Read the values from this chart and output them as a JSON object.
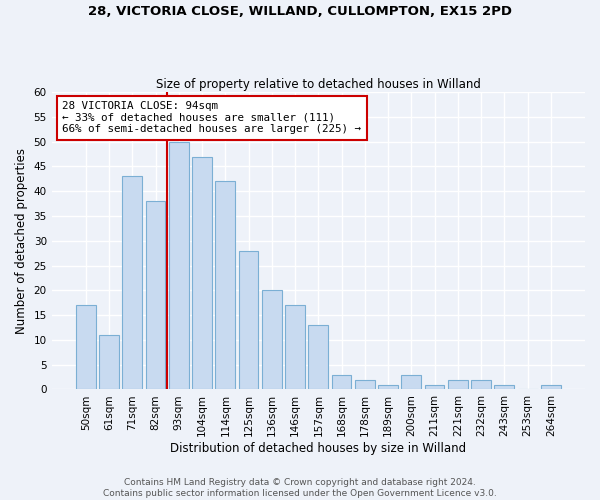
{
  "title1": "28, VICTORIA CLOSE, WILLAND, CULLOMPTON, EX15 2PD",
  "title2": "Size of property relative to detached houses in Willand",
  "xlabel": "Distribution of detached houses by size in Willand",
  "ylabel": "Number of detached properties",
  "bar_color": "#c8daf0",
  "bar_edge_color": "#7bafd4",
  "categories": [
    "50sqm",
    "61sqm",
    "71sqm",
    "82sqm",
    "93sqm",
    "104sqm",
    "114sqm",
    "125sqm",
    "136sqm",
    "146sqm",
    "157sqm",
    "168sqm",
    "178sqm",
    "189sqm",
    "200sqm",
    "211sqm",
    "221sqm",
    "232sqm",
    "243sqm",
    "253sqm",
    "264sqm"
  ],
  "values": [
    17,
    11,
    43,
    38,
    50,
    47,
    42,
    28,
    20,
    17,
    13,
    3,
    2,
    1,
    3,
    1,
    2,
    2,
    1,
    0,
    1
  ],
  "vline_x_index": 4,
  "vline_color": "#cc0000",
  "annotation_line1": "28 VICTORIA CLOSE: 94sqm",
  "annotation_line2": "← 33% of detached houses are smaller (111)",
  "annotation_line3": "66% of semi-detached houses are larger (225) →",
  "annotation_box_color": "#ffffff",
  "annotation_box_edge": "#cc0000",
  "ylim": [
    0,
    60
  ],
  "yticks": [
    0,
    5,
    10,
    15,
    20,
    25,
    30,
    35,
    40,
    45,
    50,
    55,
    60
  ],
  "footer1": "Contains HM Land Registry data © Crown copyright and database right 2024.",
  "footer2": "Contains public sector information licensed under the Open Government Licence v3.0.",
  "background_color": "#eef2f9",
  "grid_color": "#ffffff",
  "title1_fontsize": 9.5,
  "title2_fontsize": 8.5,
  "label_fontsize": 8.5,
  "tick_fontsize": 7.5,
  "footer_fontsize": 6.5
}
